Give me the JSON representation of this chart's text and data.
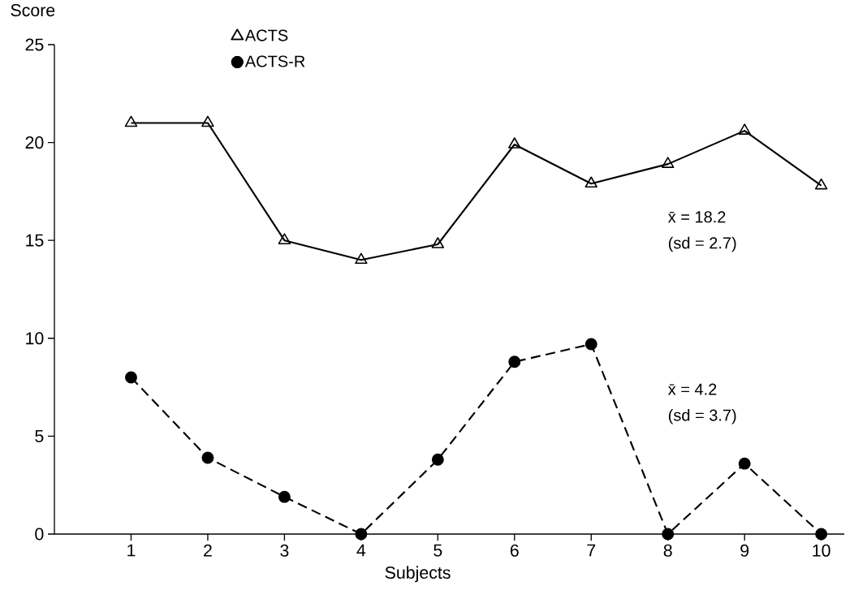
{
  "chart_data": {
    "type": "line",
    "ylabel": "Score",
    "xlabel": "Subjects",
    "x": [
      1,
      2,
      3,
      4,
      5,
      6,
      7,
      8,
      9,
      10
    ],
    "series": [
      {
        "name": "ACTS",
        "color": "#000000",
        "marker": "triangle",
        "line_style": "solid",
        "values": [
          21,
          21,
          15,
          14,
          14.8,
          19.9,
          17.9,
          18.9,
          20.6,
          17.8
        ]
      },
      {
        "name": "ACTS-R",
        "color": "#000000",
        "marker": "circle",
        "line_style": "dashed",
        "values": [
          8,
          3.9,
          1.9,
          0,
          3.8,
          8.8,
          9.7,
          0,
          3.6,
          0
        ]
      }
    ],
    "xlim": [
      0,
      10.3
    ],
    "xticks": [
      1,
      2,
      3,
      4,
      5,
      6,
      7,
      8,
      9,
      10
    ],
    "ylim": [
      0,
      25
    ],
    "yticks": [
      0,
      5,
      10,
      15,
      20,
      25
    ],
    "legend": "top left",
    "annotations": [
      "x̄ = 18.2",
      "(sd = 2.7)",
      "x̄ = 4.2",
      "(sd = 3.7)"
    ]
  }
}
